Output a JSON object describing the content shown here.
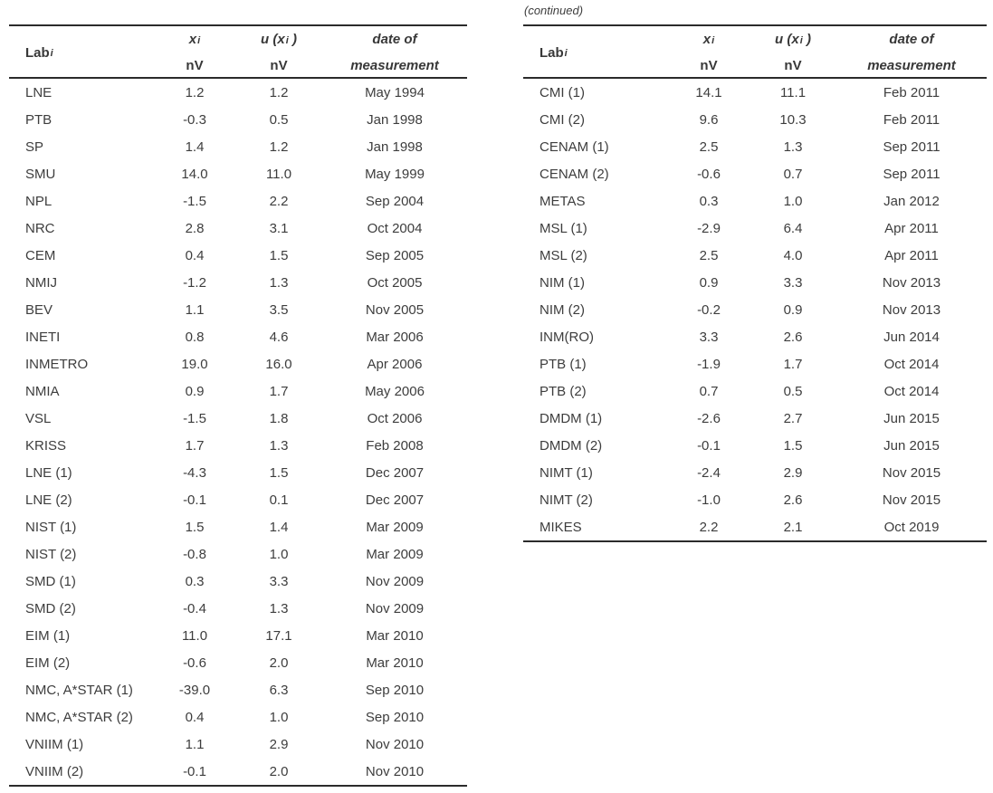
{
  "continued_label": "(continued)",
  "colors": {
    "text": "#3d3d3d",
    "rule": "#2b2b2b",
    "background": "#ffffff"
  },
  "table_header": {
    "lab": "Lab",
    "sub": "i",
    "x": "x",
    "unit": "nV",
    "u_open": "u (x",
    "u_close": " )",
    "date_line1": "date of",
    "date_line2": "measurement"
  },
  "left_table": {
    "rows": [
      {
        "lab": "LNE",
        "x": "1.2",
        "u": "1.2",
        "date": "May 1994"
      },
      {
        "lab": "PTB",
        "x": "-0.3",
        "u": "0.5",
        "date": "Jan 1998"
      },
      {
        "lab": "SP",
        "x": "1.4",
        "u": "1.2",
        "date": "Jan 1998"
      },
      {
        "lab": "SMU",
        "x": "14.0",
        "u": "11.0",
        "date": "May 1999"
      },
      {
        "lab": "NPL",
        "x": "-1.5",
        "u": "2.2",
        "date": "Sep 2004"
      },
      {
        "lab": "NRC",
        "x": "2.8",
        "u": "3.1",
        "date": "Oct 2004"
      },
      {
        "lab": "CEM",
        "x": "0.4",
        "u": "1.5",
        "date": "Sep 2005"
      },
      {
        "lab": "NMIJ",
        "x": "-1.2",
        "u": "1.3",
        "date": "Oct 2005"
      },
      {
        "lab": "BEV",
        "x": "1.1",
        "u": "3.5",
        "date": "Nov 2005"
      },
      {
        "lab": "INETI",
        "x": "0.8",
        "u": "4.6",
        "date": "Mar 2006"
      },
      {
        "lab": "INMETRO",
        "x": "19.0",
        "u": "16.0",
        "date": "Apr 2006"
      },
      {
        "lab": "NMIA",
        "x": "0.9",
        "u": "1.7",
        "date": "May 2006"
      },
      {
        "lab": "VSL",
        "x": "-1.5",
        "u": "1.8",
        "date": "Oct 2006"
      },
      {
        "lab": "KRISS",
        "x": "1.7",
        "u": "1.3",
        "date": "Feb 2008"
      },
      {
        "lab": "LNE (1)",
        "x": "-4.3",
        "u": "1.5",
        "date": "Dec 2007"
      },
      {
        "lab": "LNE (2)",
        "x": "-0.1",
        "u": "0.1",
        "date": "Dec 2007"
      },
      {
        "lab": "NIST (1)",
        "x": "1.5",
        "u": "1.4",
        "date": "Mar 2009"
      },
      {
        "lab": "NIST (2)",
        "x": "-0.8",
        "u": "1.0",
        "date": "Mar 2009"
      },
      {
        "lab": "SMD (1)",
        "x": "0.3",
        "u": "3.3",
        "date": "Nov 2009"
      },
      {
        "lab": "SMD (2)",
        "x": "-0.4",
        "u": "1.3",
        "date": "Nov 2009"
      },
      {
        "lab": "EIM (1)",
        "x": "11.0",
        "u": "17.1",
        "date": "Mar 2010"
      },
      {
        "lab": "EIM (2)",
        "x": "-0.6",
        "u": "2.0",
        "date": "Mar 2010"
      },
      {
        "lab": "NMC, A*STAR (1)",
        "x": "-39.0",
        "u": "6.3",
        "date": "Sep 2010"
      },
      {
        "lab": "NMC, A*STAR (2)",
        "x": "0.4",
        "u": "1.0",
        "date": "Sep 2010"
      },
      {
        "lab": "VNIIM (1)",
        "x": "1.1",
        "u": "2.9",
        "date": "Nov 2010"
      },
      {
        "lab": "VNIIM (2)",
        "x": "-0.1",
        "u": "2.0",
        "date": "Nov 2010"
      }
    ]
  },
  "right_table": {
    "rows": [
      {
        "lab": "CMI (1)",
        "x": "14.1",
        "u": "11.1",
        "date": "Feb 2011"
      },
      {
        "lab": "CMI (2)",
        "x": "9.6",
        "u": "10.3",
        "date": "Feb 2011"
      },
      {
        "lab": "CENAM (1)",
        "x": "2.5",
        "u": "1.3",
        "date": "Sep 2011"
      },
      {
        "lab": "CENAM (2)",
        "x": "-0.6",
        "u": "0.7",
        "date": "Sep 2011"
      },
      {
        "lab": "METAS",
        "x": "0.3",
        "u": "1.0",
        "date": "Jan 2012"
      },
      {
        "lab": "MSL (1)",
        "x": "-2.9",
        "u": "6.4",
        "date": "Apr 2011"
      },
      {
        "lab": "MSL (2)",
        "x": "2.5",
        "u": "4.0",
        "date": "Apr 2011"
      },
      {
        "lab": "NIM (1)",
        "x": "0.9",
        "u": "3.3",
        "date": "Nov 2013"
      },
      {
        "lab": "NIM (2)",
        "x": "-0.2",
        "u": "0.9",
        "date": "Nov 2013"
      },
      {
        "lab": "INM(RO)",
        "x": "3.3",
        "u": "2.6",
        "date": "Jun 2014"
      },
      {
        "lab": "PTB (1)",
        "x": "-1.9",
        "u": "1.7",
        "date": "Oct 2014"
      },
      {
        "lab": "PTB (2)",
        "x": "0.7",
        "u": "0.5",
        "date": "Oct 2014"
      },
      {
        "lab": "DMDM (1)",
        "x": "-2.6",
        "u": "2.7",
        "date": "Jun 2015"
      },
      {
        "lab": "DMDM (2)",
        "x": "-0.1",
        "u": "1.5",
        "date": "Jun 2015"
      },
      {
        "lab": "NIMT (1)",
        "x": "-2.4",
        "u": "2.9",
        "date": "Nov 2015"
      },
      {
        "lab": "NIMT (2)",
        "x": "-1.0",
        "u": "2.6",
        "date": "Nov 2015"
      },
      {
        "lab": "MIKES",
        "x": "2.2",
        "u": "2.1",
        "date": "Oct 2019"
      }
    ]
  }
}
